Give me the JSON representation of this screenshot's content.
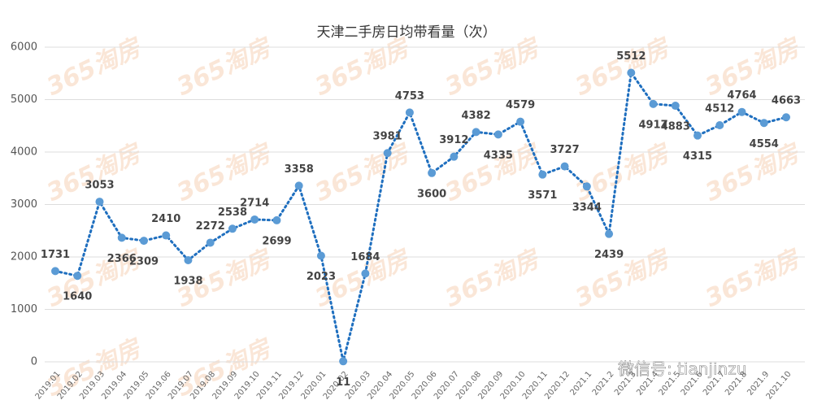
{
  "chart_data": {
    "type": "line",
    "title": "天津二手房日均带看量（次）",
    "categories": [
      "2019.01",
      "2019.02",
      "2019.03",
      "2019.04",
      "2019.05",
      "2019.06",
      "2019.07",
      "2019.08",
      "2019.09",
      "2019.10",
      "2019.11",
      "2019.12",
      "2020.01",
      "2020.02",
      "2020.03",
      "2020.04",
      "2020.05",
      "2020.06",
      "2020.07",
      "2020.08",
      "2020.09",
      "2020.10",
      "2020.11",
      "2020.12",
      "2021.1",
      "2021.2",
      "2021.3",
      "2021.4",
      "2021.5",
      "2021.6",
      "2021.7",
      "2021.8",
      "2021.9",
      "2021.10"
    ],
    "values": [
      1731,
      1640,
      3053,
      2366,
      2309,
      2410,
      1938,
      2272,
      2538,
      2714,
      2699,
      3358,
      2023,
      11,
      1684,
      3981,
      4753,
      3600,
      3912,
      4382,
      4335,
      4579,
      3571,
      3727,
      3344,
      2439,
      5512,
      4917,
      4883,
      4315,
      4512,
      4764,
      4554,
      4663
    ],
    "color": "#5b9bd5",
    "line_color": "#1f6fbf",
    "ylim": [
      0,
      6000
    ],
    "yticks": [
      0,
      1000,
      2000,
      3000,
      4000,
      5000,
      6000
    ],
    "grid": true,
    "watermark": "365淘房",
    "credit": "微信号: tianjinzu"
  }
}
